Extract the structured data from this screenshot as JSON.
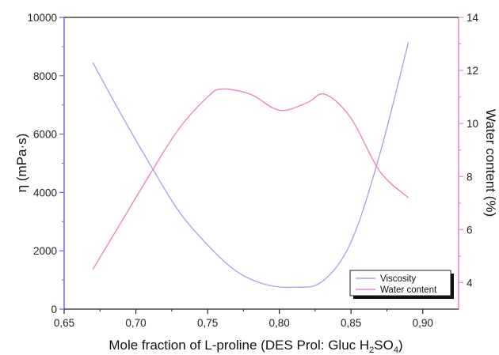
{
  "chart_data": {
    "type": "line",
    "title": "",
    "xlabel": {
      "main": "Mole fraction of L-proline  (DES Prol: Gluc H",
      "sub1": "2",
      "mid": "SO",
      "sub2": "4",
      "end": ")"
    },
    "ylabel_left": "η  (mPa·s)",
    "ylabel_right": "Water content (%)",
    "xlim": [
      0.65,
      0.925
    ],
    "ylim_left": [
      0,
      10000
    ],
    "ylim_right": [
      3,
      14
    ],
    "xticks": [
      "0,65",
      "0,70",
      "0,75",
      "0,80",
      "0,85",
      "0,90"
    ],
    "yticks_left": [
      "0",
      "2000",
      "4000",
      "6000",
      "8000",
      "10000"
    ],
    "yticks_right": [
      "4",
      "6",
      "8",
      "10",
      "12",
      "14"
    ],
    "grid": false,
    "legend_position": "bottom-right",
    "colors": {
      "viscosity": "#a9a6e6",
      "water": "#e986c2",
      "left_axis": "#6b6be0",
      "right_axis": "#e986c2"
    },
    "series": [
      {
        "name": "Viscosity",
        "axis": "left",
        "x": [
          0.67,
          0.69,
          0.71,
          0.73,
          0.75,
          0.77,
          0.79,
          0.81,
          0.83,
          0.85,
          0.87,
          0.89
        ],
        "y": [
          8450,
          6650,
          4950,
          3350,
          2200,
          1300,
          850,
          750,
          950,
          2300,
          5300,
          9150
        ]
      },
      {
        "name": "Water content",
        "axis": "right",
        "x": [
          0.67,
          0.69,
          0.71,
          0.73,
          0.75,
          0.76,
          0.78,
          0.795,
          0.805,
          0.82,
          0.832,
          0.85,
          0.87,
          0.89
        ],
        "y": [
          4.5,
          6.3,
          8.1,
          9.8,
          11.0,
          11.3,
          11.1,
          10.6,
          10.5,
          10.8,
          11.1,
          10.2,
          8.2,
          7.2
        ]
      }
    ]
  }
}
